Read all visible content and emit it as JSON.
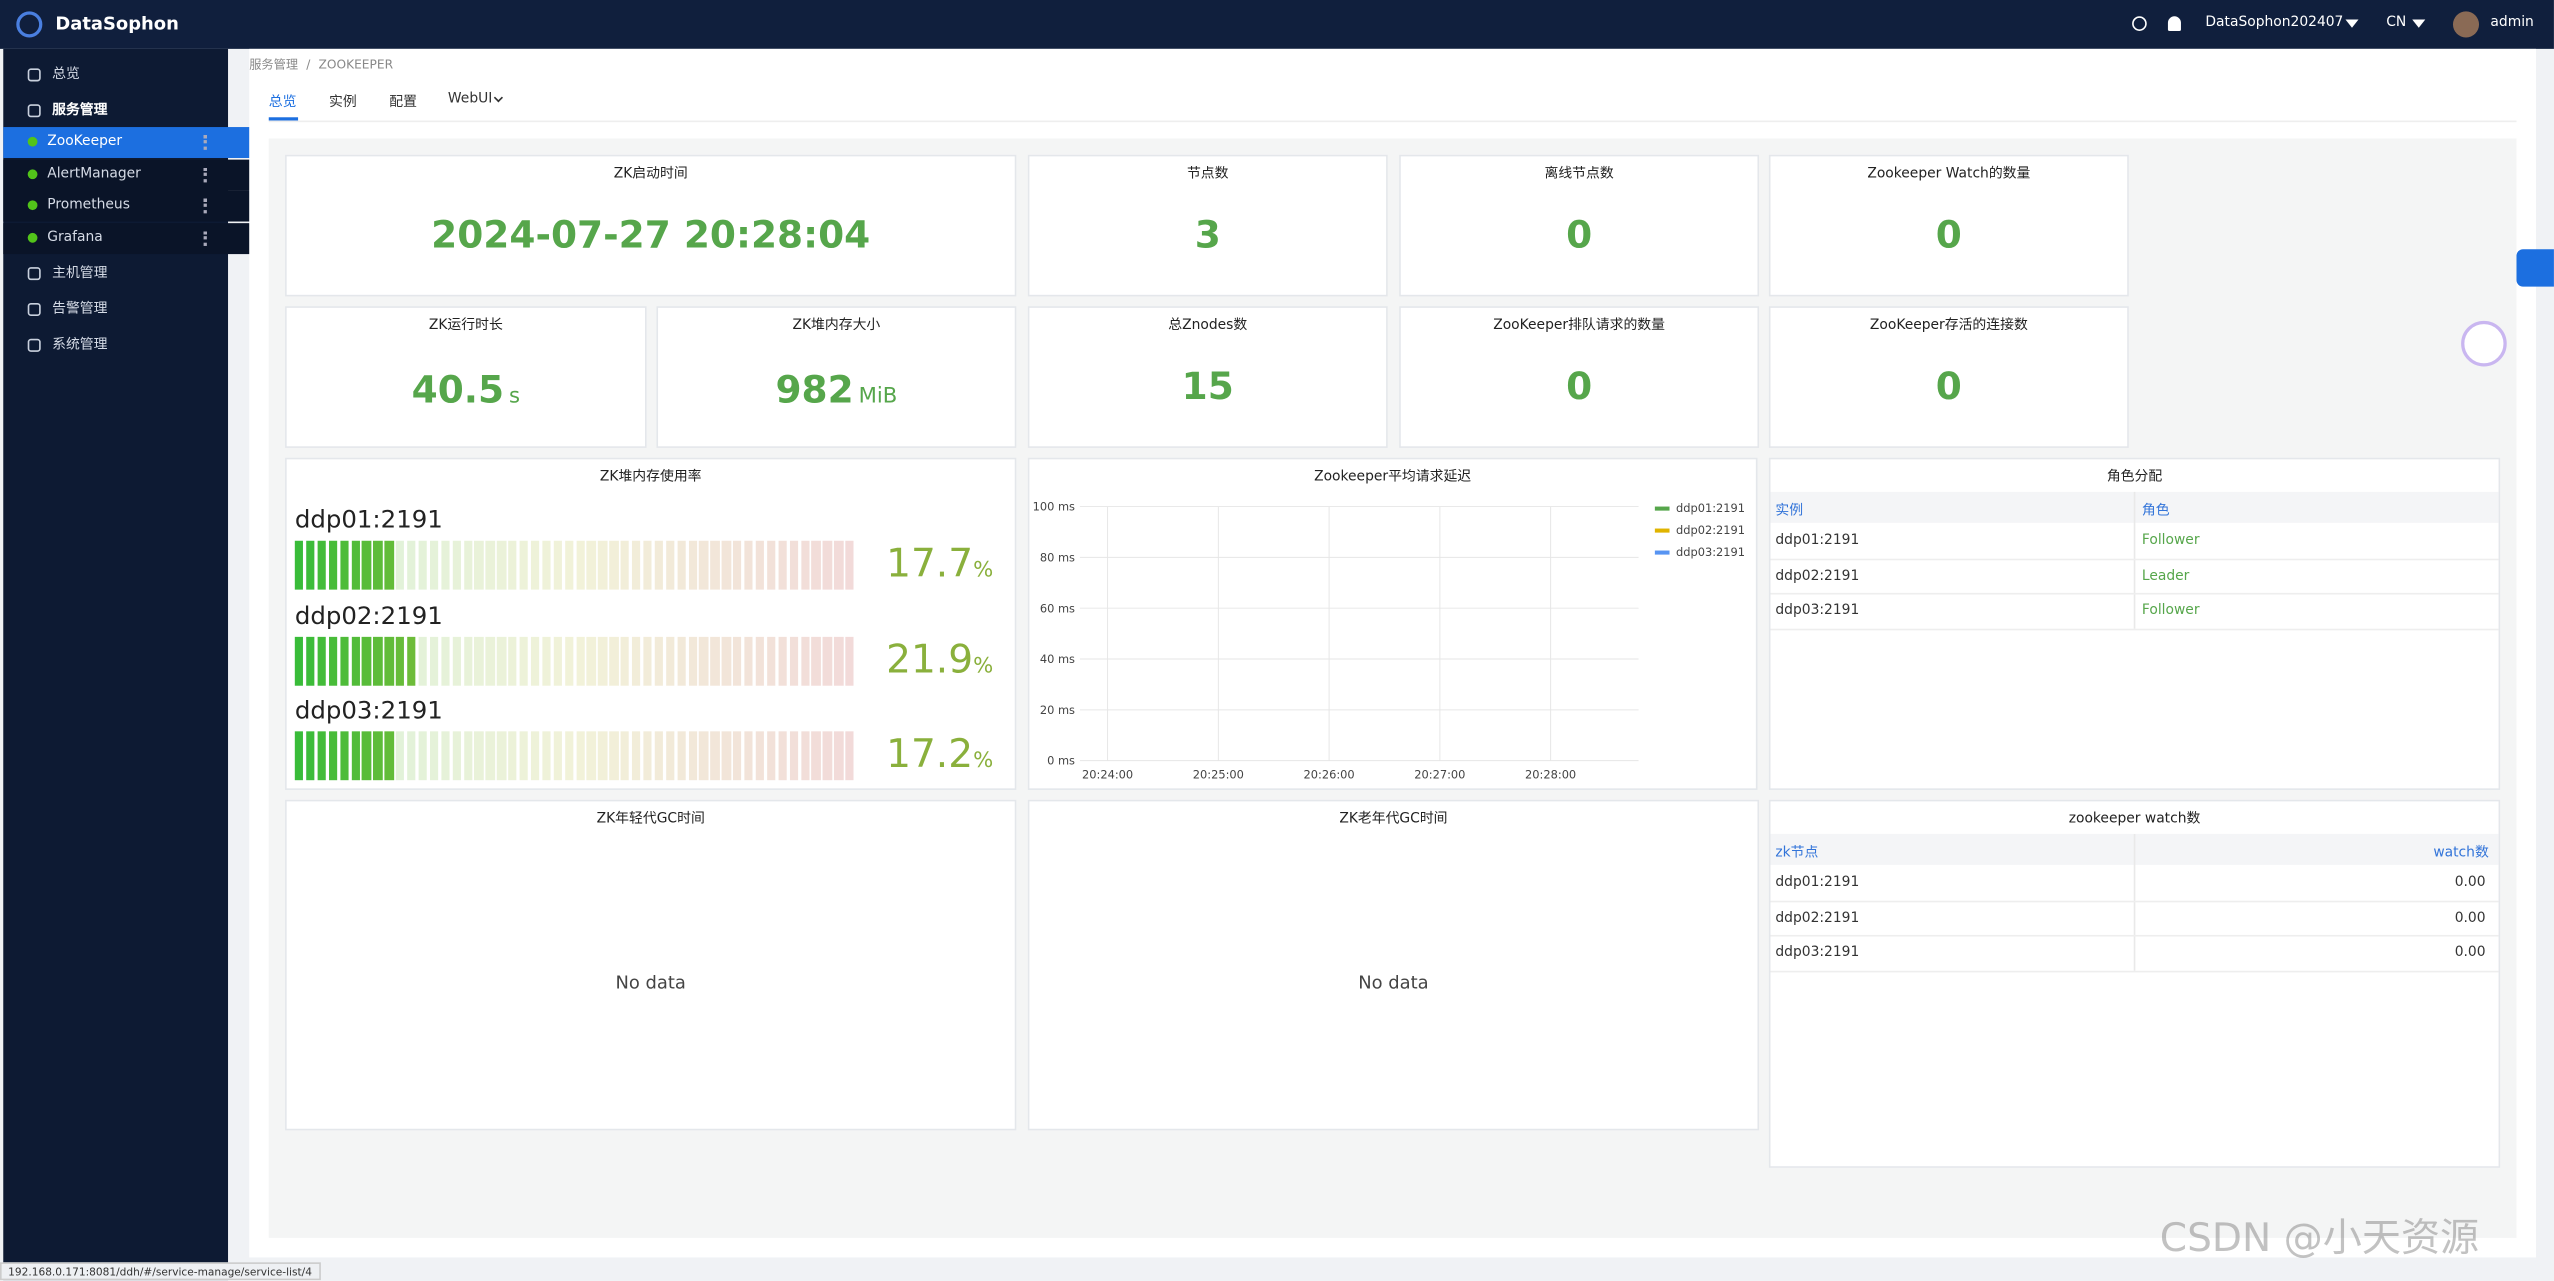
{
  "header": {
    "logo": "DataSophon",
    "cluster": "DataSophon202407",
    "language": "CN",
    "user": "admin"
  },
  "sidebar": {
    "items": [
      {
        "label": "总览"
      },
      {
        "label": "服务管理",
        "children": [
          "ZooKeeper",
          "AlertManager",
          "Prometheus",
          "Grafana"
        ]
      },
      {
        "label": "主机管理"
      },
      {
        "label": "告警管理"
      },
      {
        "label": "系统管理"
      }
    ]
  },
  "breadcrumb": [
    "服务管理",
    "ZOOKEEPER"
  ],
  "tabs": [
    "总览",
    "实例",
    "配置",
    "WebUI"
  ],
  "stats": [
    {
      "title": "ZK启动时间",
      "value": "2024-07-27 20:28:04"
    },
    {
      "title": "节点数",
      "value": 3
    },
    {
      "title": "离线节点数",
      "value": 0
    },
    {
      "title": "Zookeeper Watch的数量",
      "value": 0
    },
    {
      "title": "ZK运行时长",
      "value": 40.5,
      "unit": "s"
    },
    {
      "title": "ZK堆内存大小",
      "value": 982,
      "unit": "MiB"
    },
    {
      "title": "总Znodes数",
      "value": 15
    },
    {
      "title": "ZooKeeper排队请求的数量",
      "value": 0
    },
    {
      "title": "ZooKeeper存活的连接数",
      "value": 0
    }
  ],
  "heap_usage": {
    "title": "ZK堆内存使用率",
    "gauges": [
      {
        "label": "ddp01:2191",
        "value": 17.7,
        "unit": "%"
      },
      {
        "label": "ddp02:2191",
        "value": 21.9,
        "unit": "%"
      },
      {
        "label": "ddp03:2191",
        "value": 17.2,
        "unit": "%"
      }
    ]
  },
  "latency": {
    "title": "Zookeeper平均请求延迟",
    "y_labels": [
      "100 ms",
      "80 ms",
      "60 ms",
      "40 ms",
      "20 ms",
      "0 ms"
    ],
    "x_labels": [
      "20:24:00",
      "20:25:00",
      "20:26:00",
      "20:27:00",
      "20:28:00"
    ],
    "legend": [
      {
        "name": "ddp01:2191",
        "color": "#56a64b"
      },
      {
        "name": "ddp02:2191",
        "color": "#e0b400"
      },
      {
        "name": "ddp03:2191",
        "color": "#5794f2"
      }
    ]
  },
  "roles": {
    "title": "角色分配",
    "columns": [
      "实例",
      "角色"
    ],
    "rows": [
      [
        "ddp01:2191",
        "Follower"
      ],
      [
        "ddp02:2191",
        "Leader"
      ],
      [
        "ddp03:2191",
        "Follower"
      ]
    ]
  },
  "young_gc": {
    "title": "ZK年轻代GC时间",
    "message": "No data"
  },
  "old_gc": {
    "title": "ZK老年代GC时间",
    "message": "No data"
  },
  "watches": {
    "title": "zookeeper watch数",
    "columns": [
      "zk节点",
      "watch数"
    ],
    "rows": [
      [
        "ddp01:2191",
        "0.00"
      ],
      [
        "ddp02:2191",
        "0.00"
      ],
      [
        "ddp03:2191",
        "0.00"
      ]
    ]
  },
  "status_url": "192.168.0.171:8081/ddh/#/service-manage/service-list/4",
  "watermark": "CSDN @小天资源"
}
